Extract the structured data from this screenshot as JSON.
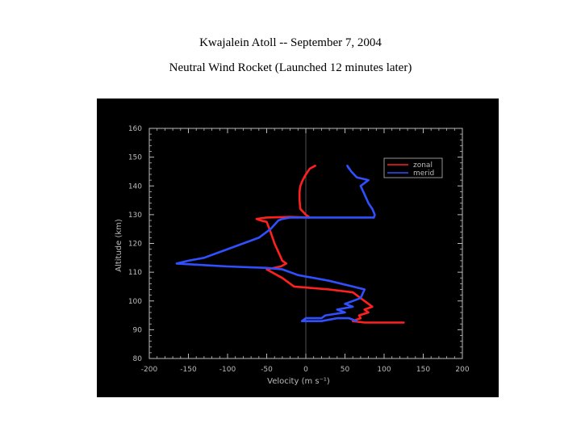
{
  "slide": {
    "title": "Kwajalein Atoll  --  September 7, 2004",
    "subtitle": "Neutral Wind Rocket (Launched 12 minutes later)"
  },
  "chart_data": {
    "type": "line",
    "xlabel": "Velocity (m s⁻¹)",
    "ylabel": "Altitude (km)",
    "xlim": [
      -200,
      200
    ],
    "ylim": [
      80,
      160
    ],
    "xticks": [
      -200,
      -150,
      -100,
      -50,
      0,
      50,
      100,
      150,
      200
    ],
    "yticks": [
      80,
      90,
      100,
      110,
      120,
      130,
      140,
      150,
      160
    ],
    "legend_position": "top-right",
    "background": "#000000",
    "axis_color": "#bbbbbb",
    "series": [
      {
        "name": "zonal",
        "color": "#ff2020",
        "points": [
          [
            12,
            147
          ],
          [
            5,
            146
          ],
          [
            0,
            144
          ],
          [
            -4,
            142
          ],
          [
            -7,
            140
          ],
          [
            -8,
            138
          ],
          [
            -8,
            135
          ],
          [
            -7,
            132
          ],
          [
            0,
            130
          ],
          [
            5,
            129
          ],
          [
            -20,
            129.2
          ],
          [
            -50,
            129
          ],
          [
            -63,
            128.5
          ],
          [
            -58,
            128
          ],
          [
            -50,
            127.5
          ],
          [
            -45,
            124
          ],
          [
            -40,
            120
          ],
          [
            -35,
            117
          ],
          [
            -30,
            114
          ],
          [
            -25,
            113
          ],
          [
            -32,
            112
          ],
          [
            -50,
            111
          ],
          [
            -30,
            108
          ],
          [
            -15,
            105
          ],
          [
            30,
            104
          ],
          [
            60,
            103
          ],
          [
            75,
            100
          ],
          [
            80,
            99
          ],
          [
            85,
            98
          ],
          [
            75,
            97
          ],
          [
            80,
            96
          ],
          [
            68,
            95
          ],
          [
            70,
            94
          ],
          [
            60,
            93
          ],
          [
            75,
            92.5
          ],
          [
            125,
            92.5
          ]
        ]
      },
      {
        "name": "merid",
        "color": "#3050ff",
        "points": [
          [
            55,
            146
          ],
          [
            53,
            147
          ],
          [
            58,
            145
          ],
          [
            65,
            143
          ],
          [
            80,
            142
          ],
          [
            75,
            141
          ],
          [
            70,
            140
          ],
          [
            75,
            137
          ],
          [
            80,
            134
          ],
          [
            85,
            132
          ],
          [
            88,
            130
          ],
          [
            87,
            129
          ],
          [
            40,
            129
          ],
          [
            0,
            129
          ],
          [
            -20,
            129
          ],
          [
            -30,
            128.5
          ],
          [
            -35,
            128
          ],
          [
            -45,
            125
          ],
          [
            -60,
            122
          ],
          [
            -100,
            118
          ],
          [
            -130,
            115
          ],
          [
            -150,
            114
          ],
          [
            -165,
            113
          ],
          [
            -100,
            112
          ],
          [
            -50,
            111.5
          ],
          [
            -30,
            111
          ],
          [
            -10,
            109
          ],
          [
            30,
            107
          ],
          [
            60,
            105
          ],
          [
            75,
            104
          ],
          [
            70,
            101
          ],
          [
            60,
            100
          ],
          [
            50,
            99
          ],
          [
            60,
            98
          ],
          [
            40,
            97
          ],
          [
            50,
            96
          ],
          [
            25,
            95
          ],
          [
            20,
            94
          ],
          [
            0,
            94
          ],
          [
            -5,
            93
          ],
          [
            20,
            93
          ],
          [
            40,
            94
          ],
          [
            55,
            94
          ],
          [
            65,
            93
          ]
        ]
      }
    ]
  }
}
